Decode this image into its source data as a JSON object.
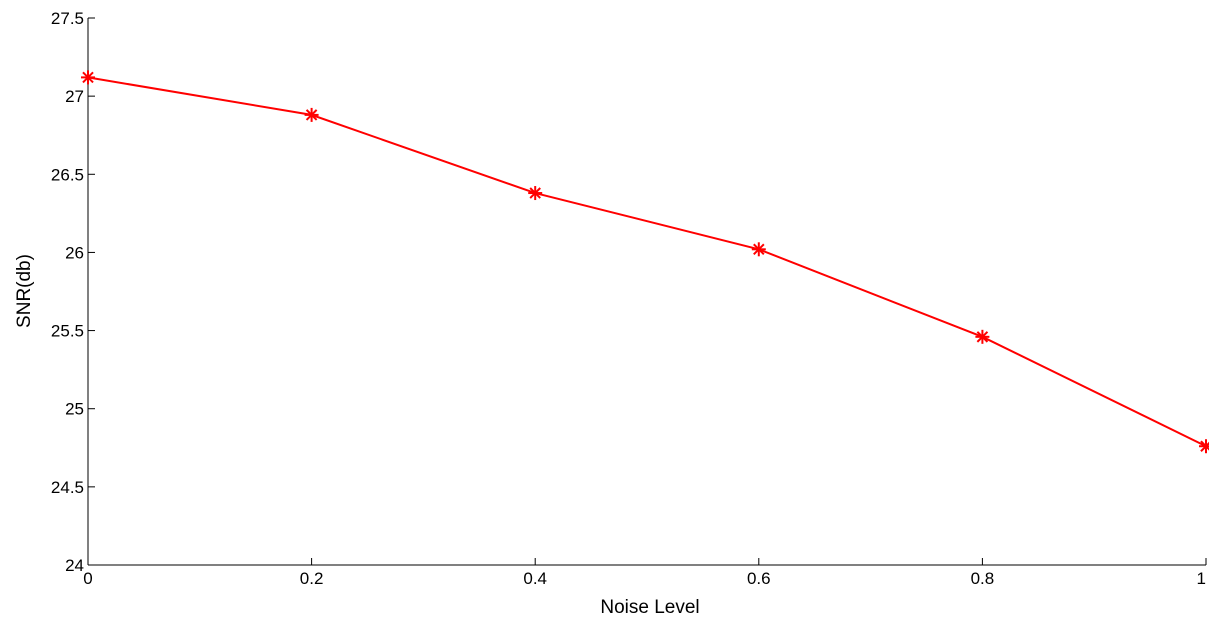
{
  "chart_data": {
    "type": "line",
    "title": "",
    "xlabel": "Noise Level",
    "ylabel": "SNR(db)",
    "xlim": [
      0,
      1
    ],
    "ylim": [
      24,
      27.5
    ],
    "xticks": [
      0,
      0.2,
      0.4,
      0.6,
      0.8,
      1
    ],
    "xtick_labels": [
      "0",
      "0.2",
      "0.4",
      "0.6",
      "0.8",
      "1"
    ],
    "yticks": [
      24,
      24.5,
      25,
      25.5,
      26,
      26.5,
      27,
      27.5
    ],
    "ytick_labels": [
      "24",
      "24.5",
      "25",
      "25.5",
      "26",
      "26.5",
      "27",
      "27.5"
    ],
    "grid": false,
    "legend": "none",
    "series": [
      {
        "color": "#ff0000",
        "marker": "asterisk",
        "x": [
          0,
          0.2,
          0.4,
          0.6,
          0.8,
          1
        ],
        "y": [
          27.12,
          26.88,
          26.38,
          26.02,
          25.46,
          24.76
        ]
      }
    ]
  }
}
